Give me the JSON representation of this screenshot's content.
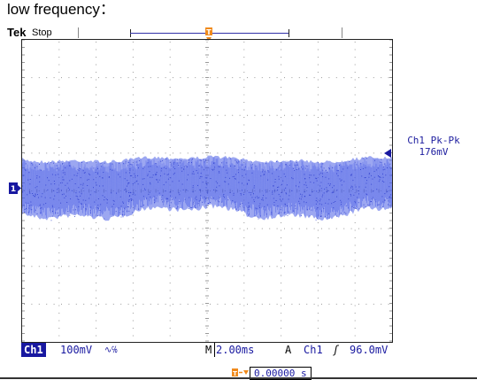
{
  "caption": "low frequency：",
  "scope": {
    "brand": "Tek",
    "run_state": "Stop"
  },
  "measurement": {
    "label": "Ch1 Pk-Pk",
    "value": "176mV"
  },
  "status_bar": {
    "channel": "Ch1",
    "volts_per_div": "100mV",
    "coupling_symbol": "∿℅",
    "timebase_prefix": "M",
    "timebase": "2.00ms",
    "trigger_mode": "A",
    "trigger_source": "Ch1",
    "trigger_slope_symbol": "ʃ",
    "trigger_level": "96.0mV"
  },
  "trigger_position": {
    "value": "0.00000 s"
  },
  "markers": {
    "channel_marker": "1",
    "trigger_marker": "T"
  },
  "colors": {
    "trace": "#4b5fe6",
    "trigger_orange": "#f08a1c",
    "channel_blue": "#1818a0",
    "grid": "#9a9a9a"
  }
}
